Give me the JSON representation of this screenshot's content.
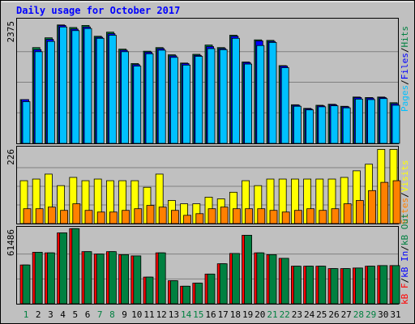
{
  "chart_data": [
    {
      "type": "bar",
      "title": "Daily usage for October 2017",
      "panel": "hits-files-pages",
      "categories": [
        "1",
        "2",
        "3",
        "4",
        "5",
        "6",
        "7",
        "8",
        "9",
        "10",
        "11",
        "12",
        "13",
        "14",
        "15",
        "16",
        "17",
        "18",
        "19",
        "20",
        "21",
        "22",
        "23",
        "24",
        "25",
        "26",
        "27",
        "28",
        "29",
        "30",
        "31"
      ],
      "weekend_days": [
        "1",
        "7",
        "8",
        "14",
        "15",
        "21",
        "22",
        "28",
        "29"
      ],
      "ylim": [
        0,
        2375
      ],
      "ymax_label": "2375",
      "ylabel_parts": [
        "Pages",
        "Files",
        "Hits"
      ],
      "series": [
        {
          "name": "Hits",
          "color": "#008040",
          "values": [
            850,
            1860,
            2050,
            2300,
            2250,
            2290,
            2080,
            2160,
            1830,
            1550,
            1790,
            1860,
            1720,
            1560,
            1730,
            1910,
            1860,
            2100,
            1580,
            2010,
            2000,
            1510,
            750,
            680,
            740,
            760,
            720,
            900,
            890,
            900,
            790
          ]
        },
        {
          "name": "Files",
          "color": "#0000ff",
          "values": [
            850,
            1820,
            2020,
            2290,
            2220,
            2260,
            2060,
            2130,
            1810,
            1530,
            1770,
            1840,
            1700,
            1550,
            1710,
            1880,
            1840,
            2080,
            1570,
            1990,
            1980,
            1500,
            740,
            670,
            730,
            750,
            710,
            890,
            880,
            890,
            770
          ]
        },
        {
          "name": "Pages",
          "color": "#00c0ff",
          "values": [
            810,
            1780,
            1980,
            2260,
            2190,
            2230,
            2040,
            2100,
            1780,
            1500,
            1740,
            1810,
            1670,
            1520,
            1690,
            1840,
            1820,
            2040,
            1540,
            1900,
            1960,
            1470,
            720,
            650,
            710,
            730,
            690,
            860,
            850,
            870,
            740
          ]
        }
      ]
    },
    {
      "type": "bar",
      "panel": "sites-visits",
      "categories": [
        "1",
        "2",
        "3",
        "4",
        "5",
        "6",
        "7",
        "8",
        "9",
        "10",
        "11",
        "12",
        "13",
        "14",
        "15",
        "16",
        "17",
        "18",
        "19",
        "20",
        "21",
        "22",
        "23",
        "24",
        "25",
        "26",
        "27",
        "28",
        "29",
        "30",
        "31"
      ],
      "ylim": [
        0,
        226
      ],
      "ymax_label": "226",
      "ylabel_parts": [
        "Sites",
        "Visits"
      ],
      "series": [
        {
          "name": "Visits",
          "color": "#ffff00",
          "values": [
            130,
            135,
            150,
            115,
            140,
            130,
            135,
            130,
            130,
            130,
            110,
            150,
            70,
            60,
            60,
            80,
            75,
            95,
            130,
            115,
            135,
            135,
            135,
            135,
            135,
            135,
            140,
            160,
            180,
            225,
            225
          ]
        },
        {
          "name": "Sites",
          "color": "#ff8000",
          "values": [
            45,
            45,
            50,
            40,
            60,
            40,
            35,
            35,
            40,
            45,
            55,
            50,
            40,
            25,
            30,
            45,
            50,
            45,
            45,
            45,
            40,
            35,
            40,
            45,
            40,
            45,
            60,
            70,
            100,
            125,
            130
          ]
        }
      ]
    },
    {
      "type": "bar",
      "panel": "kb-in-out-f",
      "categories": [
        "1",
        "2",
        "3",
        "4",
        "5",
        "6",
        "7",
        "8",
        "9",
        "10",
        "11",
        "12",
        "13",
        "14",
        "15",
        "16",
        "17",
        "18",
        "19",
        "20",
        "21",
        "22",
        "23",
        "24",
        "25",
        "26",
        "27",
        "28",
        "29",
        "30",
        "31"
      ],
      "ylim": [
        0,
        61486
      ],
      "ymax_label": "61486",
      "ylabel_parts": [
        "kB F",
        "kB In",
        "kB Out"
      ],
      "series": [
        {
          "name": "kB F",
          "color": "#ff0000",
          "values": [
            32000,
            42500,
            42000,
            58500,
            62000,
            43000,
            41000,
            43000,
            40500,
            39500,
            22000,
            42000,
            19000,
            14500,
            17000,
            24500,
            33000,
            41500,
            56500,
            42000,
            40500,
            37500,
            31000,
            31000,
            31000,
            29000,
            29000,
            29500,
            31000,
            31500,
            31500
          ]
        },
        {
          "name": "kB In",
          "color": "#008040",
          "values": [
            32000,
            42500,
            42000,
            58500,
            62000,
            43000,
            41000,
            43000,
            40500,
            39500,
            22000,
            42000,
            19000,
            14500,
            17000,
            24500,
            33000,
            41500,
            56500,
            42000,
            40500,
            37500,
            31000,
            31000,
            31000,
            29000,
            29000,
            29500,
            31000,
            31500,
            31500
          ]
        }
      ]
    }
  ]
}
